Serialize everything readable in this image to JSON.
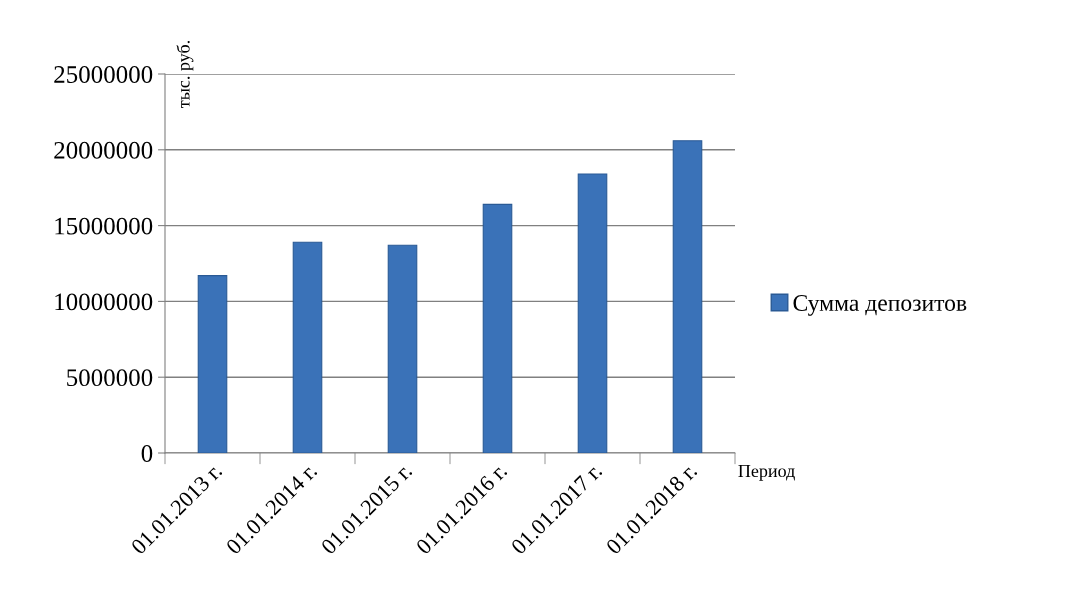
{
  "chart_data": {
    "type": "bar",
    "ylabel": "тыс. руб.",
    "xlabel": "Период",
    "categories": [
      "01.01.2013 г.",
      "01.01.2014 г.",
      "01.01.2015 г.",
      "01.01.2016 г.",
      "01.01.2017 г.",
      "01.01.2018 г."
    ],
    "series": [
      {
        "name": "Сумма депозитов",
        "color": "#3a72b8",
        "values": [
          11700000,
          13900000,
          13700000,
          16400000,
          18400000,
          20600000
        ]
      }
    ],
    "ylim": [
      0,
      25000000
    ],
    "yticks": [
      0,
      5000000,
      10000000,
      15000000,
      20000000,
      25000000
    ],
    "grid": "y",
    "legend": "right"
  }
}
